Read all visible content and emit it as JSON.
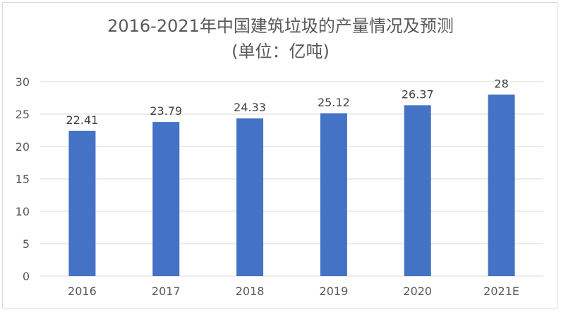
{
  "chart_data": {
    "type": "bar",
    "title": "2016-2021年中国建筑垃圾的产量情况及预测",
    "subtitle": "(单位：亿吨)",
    "categories": [
      "2016",
      "2017",
      "2018",
      "2019",
      "2020",
      "2021E"
    ],
    "values": [
      22.41,
      23.79,
      24.33,
      25.12,
      26.37,
      28
    ],
    "value_labels": [
      "22.41",
      "23.79",
      "24.33",
      "25.12",
      "26.37",
      "28"
    ],
    "ylim": [
      0,
      30
    ],
    "yticks": [
      0,
      5,
      10,
      15,
      20,
      25,
      30
    ],
    "grid": true,
    "legend": "none",
    "bar_color": "#4472c4",
    "grid_color": "#d9d9d9"
  }
}
